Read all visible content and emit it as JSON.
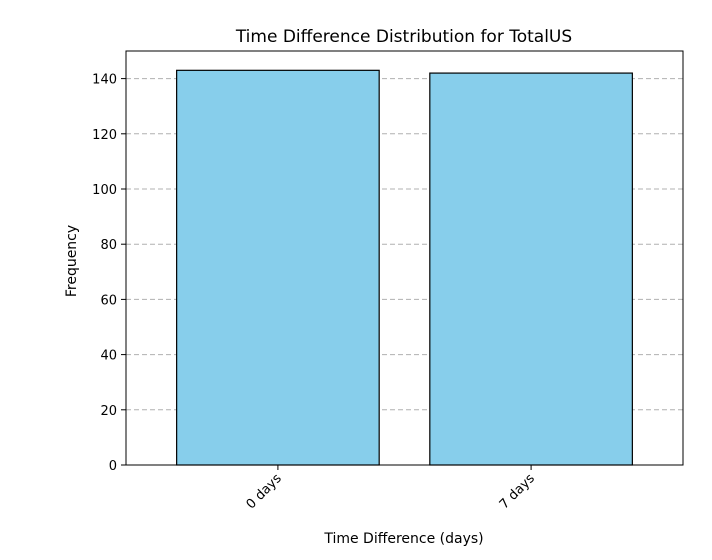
{
  "chart_data": {
    "type": "bar",
    "title": "Time Difference Distribution for TotalUS",
    "xlabel": "Time Difference (days)",
    "ylabel": "Frequency",
    "categories": [
      "0 days",
      "7 days"
    ],
    "values": [
      143,
      142
    ],
    "ylim": [
      0,
      150
    ],
    "yticks": [
      0,
      20,
      40,
      60,
      80,
      100,
      120,
      140
    ],
    "grid": "y-dashed",
    "bar_color": "#87CEEB",
    "bar_edge_color": "#000000",
    "grid_color": "#b0b0b0"
  }
}
